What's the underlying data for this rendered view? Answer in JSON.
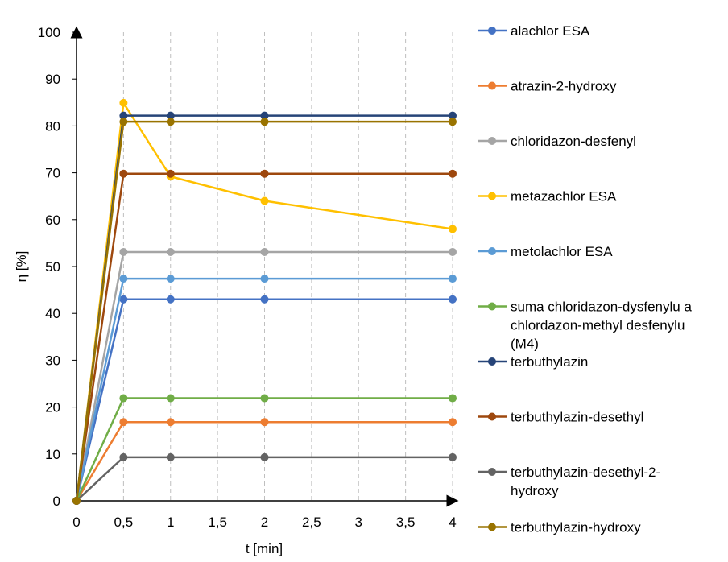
{
  "chart_data": {
    "type": "line",
    "xlabel": "t [min]",
    "ylabel": "η [%]",
    "xlim": [
      0,
      4
    ],
    "ylim": [
      0,
      100
    ],
    "x_ticks": [
      "0",
      "0,5",
      "1",
      "1,5",
      "2",
      "2,5",
      "3",
      "3,5",
      "4"
    ],
    "y_ticks": [
      "0",
      "10",
      "20",
      "30",
      "40",
      "50",
      "60",
      "70",
      "80",
      "90",
      "100"
    ],
    "grid": "vertical dashed",
    "legend_position": "right",
    "x": [
      0,
      0.5,
      1,
      2,
      4
    ],
    "series": [
      {
        "name": "alachlor ESA",
        "color": "#4472c4",
        "values": [
          0,
          43,
          43,
          43,
          43
        ]
      },
      {
        "name": "atrazin-2-hydroxy",
        "color": "#ed7d31",
        "values": [
          0,
          16.8,
          16.8,
          16.8,
          16.8
        ]
      },
      {
        "name": "chloridazon-desfenyl",
        "color": "#a5a5a5",
        "values": [
          0,
          53.1,
          53.1,
          53.1,
          53.1
        ]
      },
      {
        "name": "metazachlor ESA",
        "color": "#ffc000",
        "values": [
          0,
          84.9,
          69.2,
          64,
          58
        ]
      },
      {
        "name": "metolachlor ESA",
        "color": "#5b9bd5",
        "values": [
          0,
          47.4,
          47.4,
          47.4,
          47.4
        ]
      },
      {
        "name": "suma chloridazon-dysfenylu a chlordazon-methyl desfenylu (M4)",
        "name_lines": [
          "suma chloridazon-dysfenylu a",
          "chlordazon-methyl desfenylu",
          "(M4)"
        ],
        "color": "#70ad47",
        "values": [
          0,
          21.9,
          21.9,
          21.9,
          21.9
        ]
      },
      {
        "name": "terbuthylazin",
        "color": "#264478",
        "values": [
          0,
          82.2,
          82.2,
          82.2,
          82.2
        ]
      },
      {
        "name": "terbuthylazin-desethyl",
        "color": "#9e480e",
        "values": [
          0,
          69.8,
          69.8,
          69.8,
          69.8
        ]
      },
      {
        "name": "terbuthylazin-desethyl-2-hydroxy",
        "name_lines": [
          "terbuthylazin-desethyl-2-",
          "hydroxy"
        ],
        "color": "#636363",
        "values": [
          0,
          9.3,
          9.3,
          9.3,
          9.3
        ]
      },
      {
        "name": "terbuthylazin-hydroxy",
        "color": "#997300",
        "values": [
          0,
          80.9,
          80.9,
          80.9,
          80.9
        ]
      }
    ]
  }
}
